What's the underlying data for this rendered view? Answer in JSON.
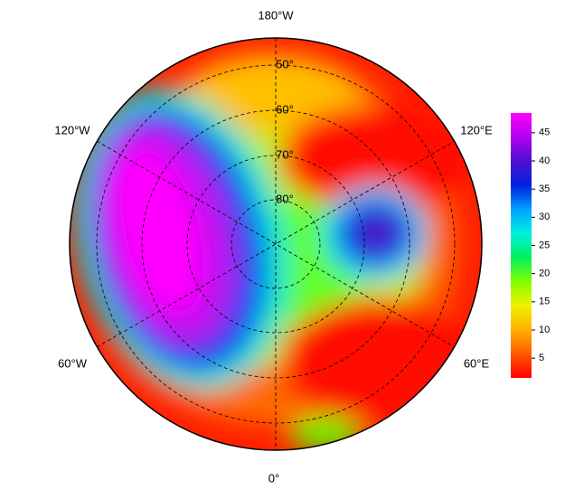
{
  "map": {
    "longitude_labels": {
      "top": "180°W",
      "upper_right": "120°E",
      "lower_right": "60°E",
      "bottom": "0°",
      "lower_left": "60°W",
      "upper_left": "120°W"
    },
    "latitude_labels": [
      "50°",
      "60°",
      "70°",
      "80°"
    ],
    "colorbar": {
      "range": [
        1.5,
        48.5
      ],
      "ticks": [
        5,
        10,
        15,
        20,
        25,
        30,
        35,
        40,
        45
      ],
      "colors": [
        "#ff0000",
        "#ff5a00",
        "#ffb000",
        "#f0f000",
        "#80ff00",
        "#00f060",
        "#00f0e0",
        "#00a0ff",
        "#0020e0",
        "#5010d0",
        "#b000f0",
        "#ff00ff"
      ]
    }
  }
}
